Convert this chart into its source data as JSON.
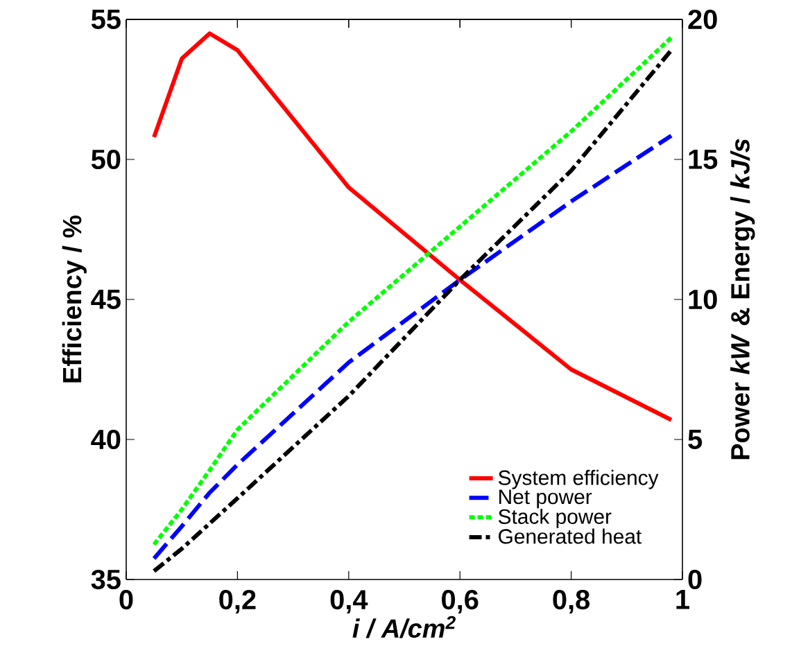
{
  "chart_data": {
    "type": "line",
    "xlabel": "i / A/cm$^{2}$",
    "ylabel": "Efficiency / %",
    "y2label": "Power *kW* & Energy / *kJ/s*",
    "xlim": [
      0,
      1
    ],
    "xticks": [
      0,
      {
        "value": 0.2,
        "label": "0,2"
      },
      {
        "value": 0.4,
        "label": "0,4"
      },
      {
        "value": 0.6,
        "label": "0,6"
      },
      {
        "value": 0.8,
        "label": "0,8"
      },
      1
    ],
    "ylim": [
      35,
      55
    ],
    "yticks": [
      35,
      40,
      45,
      50,
      55
    ],
    "y2lim": [
      0,
      20
    ],
    "y2ticks": [
      0,
      5,
      10,
      15,
      20
    ],
    "grid": false,
    "legend": "bottom right",
    "marker": "none",
    "x": [
      0.05,
      0.1,
      0.15,
      0.2,
      0.4,
      0.6,
      0.8,
      0.98
    ],
    "series": [
      {
        "name": "System efficiency",
        "color": "#ff0000",
        "line_style": "solid",
        "values": [
          50.8,
          53.6,
          54.5,
          53.9,
          49.0,
          45.7,
          42.5,
          40.7
        ]
      },
      {
        "name": "Net power",
        "color": "#0000ff",
        "line_style": "dashed",
        "axis": "y2",
        "values": [
          0.75,
          1.9,
          3.1,
          4.1,
          7.75,
          10.7,
          13.5,
          15.85
        ]
      },
      {
        "name": "Stack power",
        "color": "#00ff00",
        "line_style": "dotted",
        "axis": "y2",
        "values": [
          1.25,
          2.5,
          3.9,
          5.35,
          9.2,
          12.6,
          16.0,
          19.35
        ]
      },
      {
        "name": "Generated heat",
        "color": "#000000",
        "line_style": "dashdot",
        "axis": "y2",
        "values": [
          0.3,
          1.1,
          2.0,
          2.9,
          6.55,
          10.7,
          14.6,
          18.9
        ]
      }
    ]
  }
}
